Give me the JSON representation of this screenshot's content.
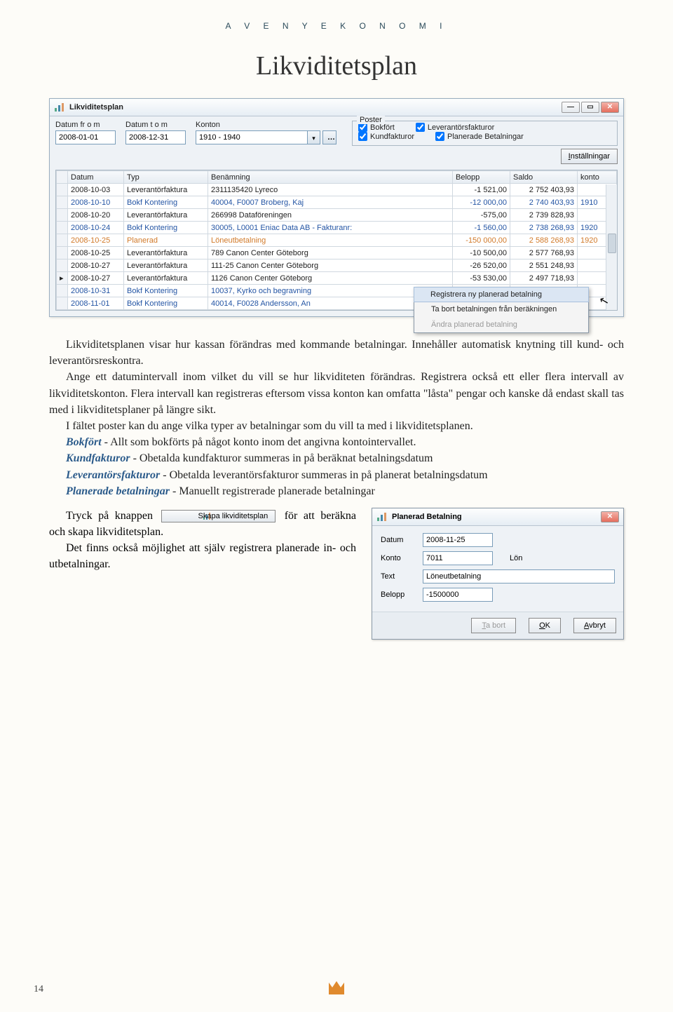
{
  "header": {
    "strip": "A V E N Y   E K O N O M I",
    "title": "Likviditetsplan"
  },
  "window": {
    "title": "Likviditetsplan",
    "filters": {
      "datum_from_label": "Datum fr o m",
      "datum_from": "2008-01-01",
      "datum_to_label": "Datum t o m",
      "datum_to": "2008-12-31",
      "konton_label": "Konton",
      "konton": "1910 - 1940"
    },
    "poster": {
      "legend": "Poster",
      "bokfort": "Bokfört",
      "kundfakturor": "Kundfakturor",
      "leverantorsfakturor": "Leverantörsfakturor",
      "planerade": "Planerade Betalningar"
    },
    "settings_btn": "Inställningar",
    "grid": {
      "headers": [
        "Datum",
        "Typ",
        "Benämning",
        "Belopp",
        "Saldo",
        "konto"
      ],
      "rows": [
        {
          "sel": "",
          "datum": "2008-10-03",
          "typ": "Leverantörfaktura",
          "ben": "2311135420 Lyreco",
          "belopp": "-1 521,00",
          "saldo": "2 752 403,93",
          "konto": "",
          "cls": ""
        },
        {
          "sel": "",
          "datum": "2008-10-10",
          "typ": "Bokf Kontering",
          "ben": "40004, F0007 Broberg, Kaj",
          "belopp": "-12 000,00",
          "saldo": "2 740 403,93",
          "konto": "1910",
          "cls": "blue"
        },
        {
          "sel": "",
          "datum": "2008-10-20",
          "typ": "Leverantörfaktura",
          "ben": "266998 Dataföreningen",
          "belopp": "-575,00",
          "saldo": "2 739 828,93",
          "konto": "",
          "cls": ""
        },
        {
          "sel": "",
          "datum": "2008-10-24",
          "typ": "Bokf Kontering",
          "ben": "30005, L0001 Eniac Data AB - Fakturanr:",
          "belopp": "-1 560,00",
          "saldo": "2 738 268,93",
          "konto": "1920",
          "cls": "blue"
        },
        {
          "sel": "",
          "datum": "2008-10-25",
          "typ": "Planerad",
          "ben": "Löneutbetalning",
          "belopp": "-150 000,00",
          "saldo": "2 588 268,93",
          "konto": "1920",
          "cls": "highlight"
        },
        {
          "sel": "",
          "datum": "2008-10-25",
          "typ": "Leverantörfaktura",
          "ben": "789 Canon Center Göteborg",
          "belopp": "-10 500,00",
          "saldo": "2 577 768,93",
          "konto": "",
          "cls": ""
        },
        {
          "sel": "",
          "datum": "2008-10-27",
          "typ": "Leverantörfaktura",
          "ben": "111-25 Canon Center Göteborg",
          "belopp": "-26 520,00",
          "saldo": "2 551 248,93",
          "konto": "",
          "cls": ""
        },
        {
          "sel": "▸",
          "datum": "2008-10-27",
          "typ": "Leverantörfaktura",
          "ben": "1126 Canon Center Göteborg",
          "belopp": "-53 530,00",
          "saldo": "2 497 718,93",
          "konto": "",
          "cls": ""
        },
        {
          "sel": "",
          "datum": "2008-10-31",
          "typ": "Bokf Kontering",
          "ben": "10037, Kyrko och begravning",
          "belopp": "",
          "saldo": "",
          "konto": "",
          "cls": "blue"
        },
        {
          "sel": "",
          "datum": "2008-11-01",
          "typ": "Bokf Kontering",
          "ben": "40014, F0028 Andersson, An",
          "belopp": "",
          "saldo": "",
          "konto": "",
          "cls": "blue"
        }
      ]
    },
    "context_menu": {
      "item1": "Registrera ny planerad betalning",
      "item2": "Ta bort betalningen från beräkningen",
      "item3": "Ändra planerad betalning"
    }
  },
  "body": {
    "p1": "Likviditetsplanen visar hur kassan förändras med kommande betalningar. Innehåller automatisk knytning till kund- och leverantörsreskontra.",
    "p2": "Ange ett datumintervall inom vilket du vill se hur likviditeten förändras. Registrera också ett eller flera intervall av likviditetskonton. Flera intervall kan registreras eftersom vissa konton kan omfatta \"låsta\" pengar och kanske då endast skall tas med i likviditetsplaner på längre sikt.",
    "p3": "I fältet poster kan du ange vilka typer av betalningar som du vill ta med i likviditetsplanen.",
    "def_bokfort": "Bokfört",
    "def_bokfort_txt": " - Allt som bokförts på något konto inom det angivna kontointervallet.",
    "def_kund": "Kundfakturor",
    "def_kund_txt": " - Obetalda kundfakturor summeras in på beräknat betalningsdatum",
    "def_lev": "Leverantörsfakturor",
    "def_lev_txt": " - Obetalda leverantörsfakturor summeras in på planerat betalningsdatum",
    "def_plan": "Planerade betalningar",
    "def_plan_txt": " - Manuellt registrerade planerade betalningar",
    "lower_pre": "Tryck på knappen ",
    "lower_btn": "Skapa likviditetsplan",
    "lower_post": " för att beräkna och skapa likviditetsplan.",
    "lower2": "Det finns också möjlighet att själv registrera planerade in- och utbetalningar."
  },
  "dialog": {
    "title": "Planerad Betalning",
    "lbl_datum": "Datum",
    "val_datum": "2008-11-25",
    "lbl_konto": "Konto",
    "val_konto": "7011",
    "side_konto": "Lön",
    "lbl_text": "Text",
    "val_text": "Löneutbetalning",
    "lbl_belopp": "Belopp",
    "val_belopp": "-1500000",
    "btn_tabort": "Ta bort",
    "btn_ok": "OK",
    "btn_avbryt": "Avbryt"
  },
  "page_number": "14"
}
